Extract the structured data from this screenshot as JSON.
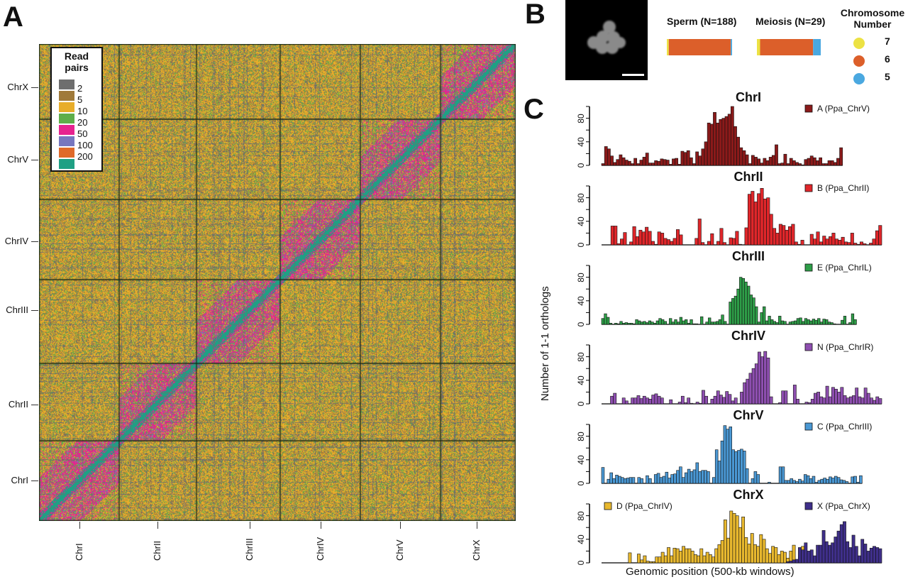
{
  "panel_labels": {
    "a": "A",
    "b": "B",
    "c": "C"
  },
  "chart_data": [
    {
      "type": "heatmap",
      "panel": "A",
      "x_tick_labels": [
        "ChrI",
        "ChrII",
        "ChrIII",
        "ChrIV",
        "ChrV",
        "ChrX"
      ],
      "y_tick_labels": [
        "ChrX",
        "ChrV",
        "ChrIV",
        "ChrIII",
        "ChrII",
        "ChrI"
      ],
      "legend": {
        "title_line1": "Read",
        "title_line2": "pairs",
        "placement": "top-left",
        "entries": [
          {
            "label": "2",
            "color": "#6e6e6e"
          },
          {
            "label": "5",
            "color": "#a07a3a"
          },
          {
            "label": "10",
            "color": "#e8ad2a"
          },
          {
            "label": "20",
            "color": "#5fae4a"
          },
          {
            "label": "50",
            "color": "#e6238f"
          },
          {
            "label": "100",
            "color": "#7777bf"
          },
          {
            "label": "200",
            "color": "#e06a2a"
          },
          {
            "label": "",
            "color": "#1fa084"
          }
        ]
      }
    },
    {
      "type": "bar",
      "panel": "B",
      "orientation": "stacked-horizontal",
      "bars": [
        {
          "label": "Sperm (N=188)",
          "fractions": [
            0.03,
            0.95,
            0.02
          ]
        },
        {
          "label": "Meiosis (N=29)",
          "fractions": [
            0.05,
            0.83,
            0.12
          ]
        }
      ],
      "legend": {
        "title_line1": "Chromosome",
        "title_line2": "Number",
        "entries": [
          {
            "label": "7",
            "color": "#ece244"
          },
          {
            "label": "6",
            "color": "#dc5f2a"
          },
          {
            "label": "5",
            "color": "#4aa8e0"
          }
        ]
      }
    },
    {
      "type": "bar",
      "panel": "C",
      "ylabel": "Number of 1-1 orthologs",
      "xlabel": "Genomic position (500-kb windows)",
      "ylim": [
        0,
        100
      ],
      "yticks": [
        "0",
        "40",
        "80"
      ],
      "subplots": [
        {
          "title": "ChrI",
          "series": [
            {
              "name": "A (Ppa_ChrV)",
              "color": "#8b1a1a",
              "values": [
                3,
                32,
                28,
                16,
                5,
                10,
                18,
                13,
                9,
                7,
                3,
                12,
                3,
                9,
                14,
                21,
                4,
                4,
                8,
                7,
                11,
                10,
                9,
                2,
                11,
                12,
                2,
                24,
                22,
                25,
                13,
                3,
                23,
                16,
                28,
                40,
                72,
                70,
                90,
                72,
                78,
                80,
                83,
                87,
                100,
                66,
                48,
                30,
                25,
                18,
                3,
                17,
                14,
                11,
                4,
                12,
                8,
                14,
                17,
                35,
                3,
                4,
                19,
                3,
                12,
                8,
                5,
                3,
                1,
                10,
                12,
                16,
                13,
                8,
                13,
                3,
                3,
                8,
                8,
                5,
                12,
                30
              ]
            }
          ],
          "extent": 0.86
        },
        {
          "title": "ChrII",
          "series": [
            {
              "name": "B (Ppa_ChrII)",
              "color": "#e0262a",
              "values": [
                0,
                0,
                0,
                32,
                32,
                2,
                10,
                21,
                0,
                5,
                31,
                14,
                25,
                22,
                30,
                23,
                6,
                1,
                22,
                20,
                11,
                9,
                6,
                11,
                26,
                17,
                0,
                0,
                0,
                0,
                11,
                44,
                4,
                0,
                6,
                19,
                0,
                6,
                28,
                4,
                0,
                12,
                11,
                23,
                1,
                0,
                29,
                86,
                91,
                73,
                87,
                96,
                78,
                80,
                52,
                28,
                20,
                35,
                33,
                25,
                31,
                35,
                5,
                1,
                8,
                0,
                0,
                18,
                10,
                22,
                5,
                15,
                10,
                14,
                20,
                10,
                8,
                13,
                5,
                4,
                20,
                3,
                1,
                5,
                2,
                0,
                3,
                10,
                24,
                33
              ]
            }
          ],
          "extent": 1.0
        },
        {
          "title": "ChrIII",
          "series": [
            {
              "name": "E (Ppa_ChrIL)",
              "color": "#2e9e48",
              "values": [
                10,
                18,
                12,
                2,
                0,
                2,
                1,
                5,
                2,
                3,
                2,
                2,
                1,
                8,
                6,
                4,
                5,
                3,
                6,
                4,
                2,
                6,
                10,
                8,
                5,
                0,
                10,
                4,
                8,
                4,
                12,
                6,
                8,
                2,
                8,
                1,
                1,
                0,
                13,
                0,
                4,
                11,
                4,
                4,
                5,
                8,
                16,
                5,
                0,
                38,
                44,
                48,
                60,
                80,
                78,
                72,
                65,
                50,
                45,
                30,
                4,
                20,
                30,
                6,
                14,
                8,
                5,
                3,
                14,
                6,
                5,
                0,
                4,
                5,
                6,
                10,
                11,
                5,
                10,
                8,
                6,
                9,
                7,
                10,
                4,
                9,
                8,
                4,
                3,
                1,
                0,
                0,
                7,
                14,
                0,
                3,
                18,
                8
              ]
            }
          ],
          "extent": 0.91
        },
        {
          "title": "ChrIV",
          "series": [
            {
              "name": "N (Ppa_ChrIR)",
              "color": "#8e4fb0",
              "values": [
                0,
                0,
                0,
                13,
                18,
                0,
                0,
                10,
                5,
                0,
                10,
                10,
                14,
                9,
                13,
                10,
                8,
                15,
                17,
                13,
                10,
                0,
                0,
                7,
                0,
                0,
                3,
                13,
                2,
                10,
                1,
                0,
                3,
                1,
                23,
                13,
                0,
                8,
                13,
                22,
                15,
                11,
                21,
                16,
                5,
                10,
                0,
                20,
                36,
                42,
                52,
                60,
                68,
                88,
                80,
                89,
                78,
                12,
                0,
                0,
                2,
                22,
                22,
                0,
                0,
                32,
                8,
                0,
                0,
                3,
                2,
                8,
                18,
                20,
                12,
                10,
                30,
                12,
                28,
                25,
                20,
                28,
                14,
                10,
                12,
                14,
                27,
                12,
                10,
                27,
                18,
                10,
                6,
                12,
                9
              ]
            }
          ],
          "extent": 1.0
        },
        {
          "title": "ChrV",
          "series": [
            {
              "name": "C (Ppa_ChrIII)",
              "color": "#4a98d4",
              "values": [
                27,
                0,
                7,
                18,
                8,
                14,
                12,
                10,
                8,
                9,
                10,
                10,
                0,
                10,
                8,
                0,
                13,
                8,
                0,
                15,
                17,
                10,
                12,
                19,
                9,
                15,
                16,
                22,
                28,
                10,
                18,
                24,
                20,
                23,
                35,
                20,
                22,
                22,
                20,
                0,
                10,
                57,
                38,
                72,
                98,
                92,
                96,
                57,
                54,
                56,
                58,
                55,
                25,
                0,
                8,
                20,
                15,
                0,
                0,
                0,
                2,
                0,
                0,
                0,
                28,
                28,
                5,
                5,
                8,
                5,
                3,
                7,
                4,
                15,
                13,
                8,
                12,
                2,
                5,
                7,
                9,
                7,
                11,
                9,
                12,
                10,
                6,
                5,
                3,
                0,
                11,
                12,
                2,
                13
              ]
            }
          ],
          "extent": 0.93
        },
        {
          "title": "ChrX",
          "series": [
            {
              "name": "D (Ppa_ChrIV)",
              "color": "#e8b82e",
              "values": [
                0,
                0,
                0,
                0,
                0,
                0,
                0,
                0,
                0,
                17,
                0,
                0,
                15,
                5,
                12,
                3,
                2,
                2,
                10,
                10,
                18,
                12,
                26,
                12,
                25,
                24,
                20,
                28,
                24,
                24,
                20,
                14,
                12,
                24,
                12,
                18,
                14,
                10,
                24,
                31,
                38,
                73,
                42,
                88,
                84,
                80,
                60,
                78,
                43,
                32,
                50,
                31,
                28,
                48,
                40,
                24,
                16,
                28,
                26,
                14,
                20,
                18,
                8,
                20,
                30,
                4,
                10,
                28,
                20,
                4,
                2,
                0,
                0,
                0,
                0,
                0,
                0,
                0,
                0,
                0,
                0,
                0,
                0,
                0,
                0,
                0,
                0,
                0,
                0,
                0,
                0,
                0,
                0,
                0
              ]
            },
            {
              "name": "X (Ppa_ChrX)",
              "color": "#3f2f8a",
              "values": [
                0,
                0,
                0,
                0,
                0,
                0,
                0,
                0,
                0,
                0,
                0,
                0,
                0,
                0,
                0,
                0,
                0,
                0,
                0,
                0,
                0,
                0,
                0,
                0,
                0,
                0,
                0,
                0,
                0,
                0,
                0,
                0,
                0,
                0,
                0,
                0,
                0,
                0,
                0,
                0,
                0,
                0,
                0,
                0,
                0,
                0,
                0,
                0,
                0,
                0,
                0,
                0,
                0,
                0,
                0,
                0,
                0,
                0,
                0,
                0,
                0,
                0,
                2,
                3,
                5,
                6,
                26,
                22,
                34,
                20,
                22,
                12,
                30,
                30,
                55,
                36,
                30,
                34,
                44,
                54,
                65,
                70,
                36,
                26,
                47,
                28,
                12,
                40,
                32,
                20,
                25,
                28,
                26,
                24
              ]
            }
          ],
          "extent": 1.0
        }
      ]
    }
  ]
}
